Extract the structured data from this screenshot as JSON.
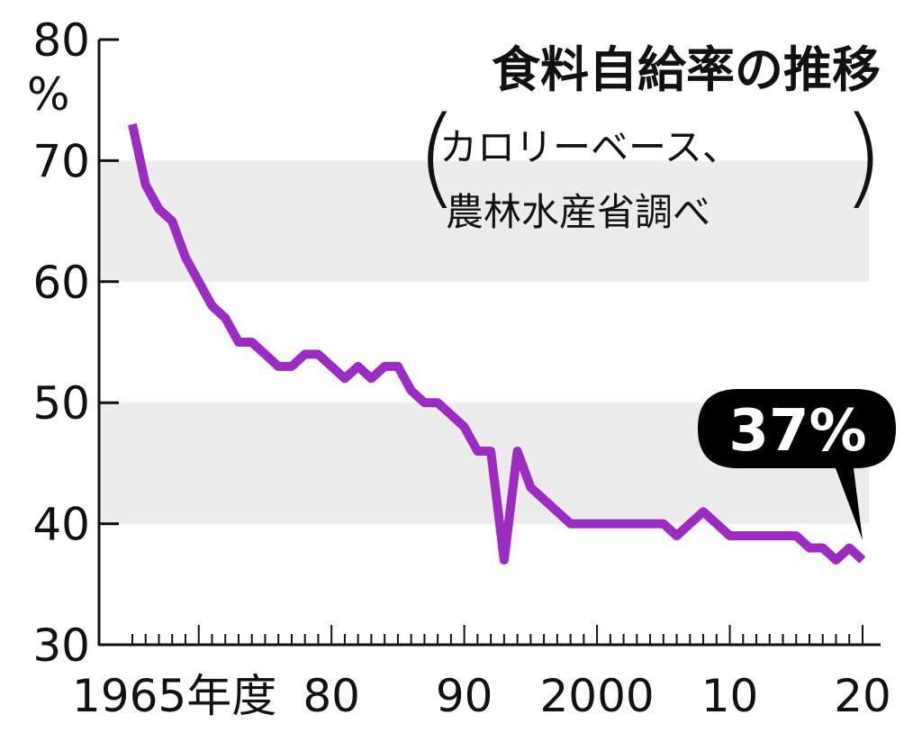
{
  "chart_data": {
    "type": "line",
    "title": "食料自給率の推移",
    "subtitle_line1": "カロリーベース、",
    "subtitle_line2": "農林水産省調べ",
    "ylabel": "%",
    "ylim": [
      30,
      80
    ],
    "xlim": [
      1965,
      2020
    ],
    "yticks": [
      30,
      40,
      50,
      60,
      70,
      80
    ],
    "ytick_labels": [
      "30",
      "40",
      "50",
      "60",
      "70",
      "80"
    ],
    "xtick_labels": [
      {
        "year": 1965,
        "label": "1965年度"
      },
      {
        "year": 1980,
        "label": "80"
      },
      {
        "year": 1990,
        "label": "90"
      },
      {
        "year": 2000,
        "label": "2000"
      },
      {
        "year": 2010,
        "label": "10"
      },
      {
        "year": 2020,
        "label": "20"
      }
    ],
    "shaded_bands": [
      [
        40,
        50
      ],
      [
        60,
        70
      ]
    ],
    "line_color": "#9b2bc3",
    "band_color": "#ececec",
    "annotation": {
      "text": "37%",
      "year": 2020,
      "value": 37
    },
    "x": [
      1965,
      1966,
      1967,
      1968,
      1969,
      1970,
      1971,
      1972,
      1973,
      1974,
      1975,
      1976,
      1977,
      1978,
      1979,
      1980,
      1981,
      1982,
      1983,
      1984,
      1985,
      1986,
      1987,
      1988,
      1989,
      1990,
      1991,
      1992,
      1993,
      1994,
      1995,
      1996,
      1997,
      1998,
      1999,
      2000,
      2001,
      2002,
      2003,
      2004,
      2005,
      2006,
      2007,
      2008,
      2009,
      2010,
      2011,
      2012,
      2013,
      2014,
      2015,
      2016,
      2017,
      2018,
      2019,
      2020
    ],
    "values": [
      73,
      68,
      66,
      65,
      62,
      60,
      58,
      57,
      55,
      55,
      54,
      53,
      53,
      54,
      54,
      53,
      52,
      53,
      52,
      53,
      53,
      51,
      50,
      50,
      49,
      48,
      46,
      46,
      37,
      46,
      43,
      42,
      41,
      40,
      40,
      40,
      40,
      40,
      40,
      40,
      40,
      39,
      40,
      41,
      40,
      39,
      39,
      39,
      39,
      39,
      39,
      38,
      38,
      37,
      38,
      37
    ]
  }
}
